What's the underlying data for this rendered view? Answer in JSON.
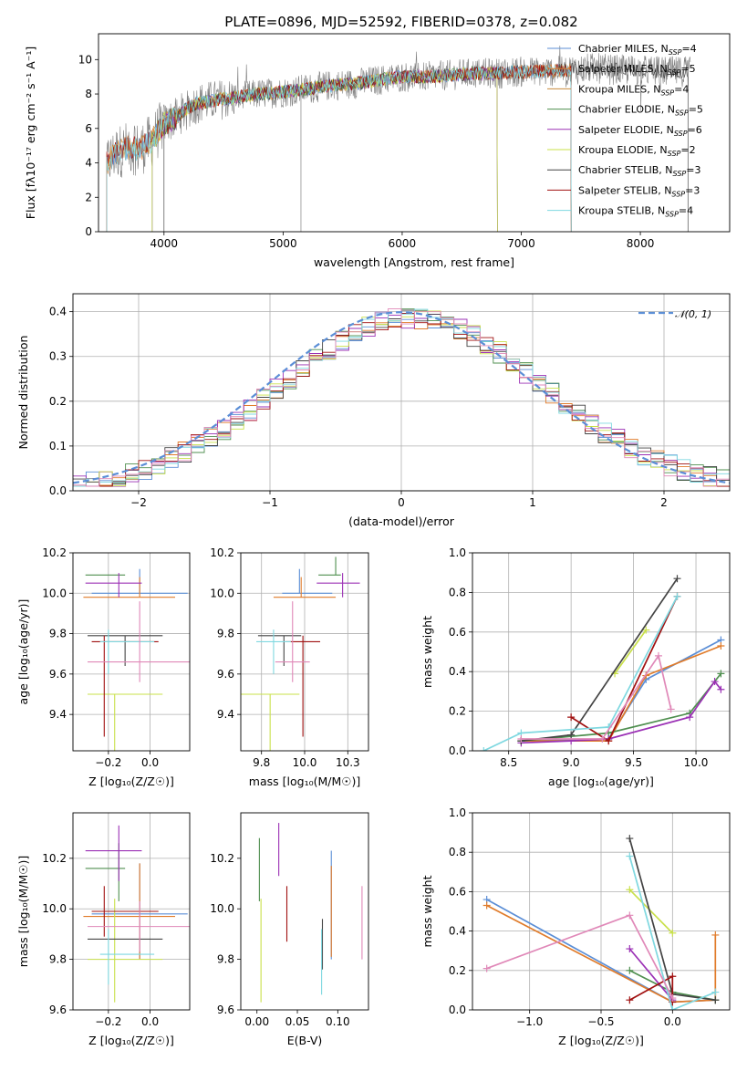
{
  "figure": {
    "title": "PLATE=0896, MJD=52592, FIBERID=0378, z=0.082"
  },
  "chart_data": [
    {
      "id": "spectrum",
      "type": "line",
      "xlabel": "wavelength [Angstrom, rest frame]",
      "ylabel": "Flux [fλ10⁻¹⁷ erg cm⁻² s⁻¹ A⁻¹]",
      "xlim": [
        3450,
        8750
      ],
      "ylim": [
        0,
        11.5
      ],
      "xticks": [
        4000,
        5000,
        6000,
        7000,
        8000
      ],
      "yticks": [
        0,
        2,
        4,
        6,
        8,
        10
      ],
      "grid": false,
      "legend_placement": "top-right",
      "data_curve": {
        "name": "",
        "color": "#808080",
        "x": [
          3520,
          3600,
          3700,
          3800,
          3900,
          4000,
          4100,
          4200,
          4300,
          4400,
          4600,
          4800,
          5000,
          5200,
          5400,
          5600,
          5800,
          6000,
          6200,
          6400,
          6600,
          6800,
          7000,
          7200,
          7400,
          7600,
          7800,
          8000,
          8200,
          8400
        ],
        "y": [
          4.0,
          4.6,
          4.9,
          4.8,
          5.3,
          6.3,
          6.6,
          7.2,
          7.5,
          7.6,
          7.8,
          8.0,
          8.1,
          8.3,
          8.5,
          8.6,
          8.8,
          9.0,
          9.0,
          9.1,
          9.2,
          9.2,
          9.3,
          9.3,
          9.4,
          9.5,
          9.4,
          9.4,
          9.3,
          9.3
        ]
      },
      "series": [
        {
          "name": "Chabrier MILES, N_SSP=4",
          "legend_main": "Chabrier MILES, N",
          "legend_sub": "SSP",
          "legend_tail": "=4",
          "color": "#5b8ed6",
          "x_start": 3520,
          "x_end": 7420
        },
        {
          "name": "Salpeter MILES, N_SSP=5",
          "legend_main": "Salpeter MILES, N",
          "legend_sub": "SSP",
          "legend_tail": "=5",
          "color": "#e07b2a",
          "x_start": 3520,
          "x_end": 7420
        },
        {
          "name": "Kroupa MILES, N_SSP=4",
          "legend_main": "Kroupa MILES, N",
          "legend_sub": "SSP",
          "legend_tail": "=4",
          "color": "#c88a3c",
          "x_start": 3520,
          "x_end": 7420
        },
        {
          "name": "Chabrier ELODIE, N_SSP=5",
          "legend_main": "Chabrier ELODIE, N",
          "legend_sub": "SSP",
          "legend_tail": "=5",
          "color": "#4f8f4f",
          "x_start": 3900,
          "x_end": 6800
        },
        {
          "name": "Salpeter ELODIE, N_SSP=6",
          "legend_main": "Salpeter ELODIE, N",
          "legend_sub": "SSP",
          "legend_tail": "=6",
          "color": "#9b30b5",
          "x_start": 3900,
          "x_end": 6800
        },
        {
          "name": "Kroupa ELODIE, N_SSP=2",
          "legend_main": "Kroupa ELODIE, N",
          "legend_sub": "SSP",
          "legend_tail": "=2",
          "color": "#c9e04a",
          "x_start": 3900,
          "x_end": 6800
        },
        {
          "name": "Chabrier STELIB, N_SSP=3",
          "legend_main": "Chabrier STELIB, N",
          "legend_sub": "SSP",
          "legend_tail": "=3",
          "color": "#444444",
          "x_start": 4000,
          "x_end": 8400
        },
        {
          "name": "Salpeter STELIB, N_SSP=3",
          "legend_main": "Salpeter STELIB, N",
          "legend_sub": "SSP",
          "legend_tail": "=3",
          "color": "#a01010",
          "x_start": 3520,
          "x_end": 7420
        },
        {
          "name": "Kroupa STELIB, N_SSP=4",
          "legend_main": "Kroupa STELIB, N",
          "legend_sub": "SSP",
          "legend_tail": "=4",
          "color": "#7fd8e0",
          "x_start": 3520,
          "x_end": 7420
        }
      ]
    },
    {
      "id": "residuals",
      "type": "histogram",
      "xlabel": "(data-model)/error",
      "ylabel": "Normed distribution",
      "xlim": [
        -2.5,
        2.5
      ],
      "ylim": [
        0,
        0.44
      ],
      "xticks": [
        -2,
        -1,
        0,
        1,
        2
      ],
      "yticks": [
        0.0,
        0.1,
        0.2,
        0.3,
        0.4
      ],
      "grid": true,
      "legend_placement": "top-right",
      "reference_curve": {
        "name": "𝒩(0, 1)",
        "color": "#5b8ed6",
        "style": "dashed"
      },
      "bin_width": 0.1,
      "series_colors": [
        "#5b8ed6",
        "#e07b2a",
        "#4f8f4f",
        "#9b30b5",
        "#c9e04a",
        "#444444",
        "#a01010",
        "#7fd8e0",
        "#e088b8"
      ]
    },
    {
      "id": "age-vs-Z",
      "type": "errorbar",
      "xlabel": "Z [log₁₀(Z/Z☉)]",
      "ylabel": "age  [log₁₀(age/yr)]",
      "xlim": [
        -0.37,
        0.19
      ],
      "ylim": [
        9.22,
        10.2
      ],
      "xticks": [
        -0.2,
        0.0
      ],
      "yticks": [
        9.4,
        9.6,
        9.8,
        10.0,
        10.2
      ],
      "grid": true,
      "points": [
        {
          "color": "#5b8ed6",
          "x": -0.05,
          "xerr": [
            0.23,
            0.23
          ],
          "y": 10.0,
          "yerr": [
            0.0,
            0.12
          ]
        },
        {
          "color": "#e07b2a",
          "x": -0.05,
          "xerr": [
            0.27,
            0.17
          ],
          "y": 9.98,
          "yerr": [
            0.0,
            0.1
          ]
        },
        {
          "color": "#4f8f4f",
          "x": -0.15,
          "xerr": [
            0.16,
            0.03
          ],
          "y": 10.09,
          "yerr": [
            0.0,
            0.0
          ]
        },
        {
          "color": "#9b30b5",
          "x": -0.15,
          "xerr": [
            0.16,
            0.11
          ],
          "y": 10.05,
          "yerr": [
            0.07,
            0.05
          ]
        },
        {
          "color": "#c9e04a",
          "x": -0.17,
          "xerr": [
            0.13,
            0.23
          ],
          "y": 9.5,
          "yerr": [
            0.3,
            0.0
          ]
        },
        {
          "color": "#444444",
          "x": -0.12,
          "xerr": [
            0.18,
            0.18
          ],
          "y": 9.79,
          "yerr": [
            0.15,
            0.0
          ]
        },
        {
          "color": "#a01010",
          "x": -0.22,
          "xerr": [
            0.06,
            0.26
          ],
          "y": 9.76,
          "yerr": [
            0.47,
            0.03
          ]
        },
        {
          "color": "#7fd8e0",
          "x": -0.2,
          "xerr": [
            0.04,
            0.22
          ],
          "y": 9.76,
          "yerr": [
            0.16,
            0.06
          ]
        },
        {
          "color": "#e088b8",
          "x": -0.05,
          "xerr": [
            0.25,
            0.27
          ],
          "y": 9.66,
          "yerr": [
            0.1,
            0.3
          ]
        }
      ]
    },
    {
      "id": "age-vs-mass",
      "type": "errorbar",
      "xlabel": "mass [log₁₀(M/M☉)]",
      "ylabel": "",
      "xlim": [
        9.63,
        10.37
      ],
      "ylim": [
        9.22,
        10.2
      ],
      "xticks": [
        9.75,
        10.0,
        10.25
      ],
      "yticks": [
        9.4,
        9.6,
        9.8,
        10.0,
        10.2
      ],
      "grid": true,
      "points": [
        {
          "color": "#5b8ed6",
          "x": 9.97,
          "xerr": [
            0.1,
            0.19
          ],
          "y": 10.0,
          "yerr": [
            0.0,
            0.12
          ]
        },
        {
          "color": "#e07b2a",
          "x": 9.98,
          "xerr": [
            0.16,
            0.2
          ],
          "y": 9.98,
          "yerr": [
            0.0,
            0.1
          ]
        },
        {
          "color": "#4f8f4f",
          "x": 10.18,
          "xerr": [
            0.1,
            0.03
          ],
          "y": 10.09,
          "yerr": [
            0.0,
            0.09
          ]
        },
        {
          "color": "#9b30b5",
          "x": 10.22,
          "xerr": [
            0.15,
            0.1
          ],
          "y": 10.05,
          "yerr": [
            0.07,
            0.05
          ]
        },
        {
          "color": "#c9e04a",
          "x": 9.8,
          "xerr": [
            0.17,
            0.17
          ],
          "y": 9.5,
          "yerr": [
            0.3,
            0.0
          ]
        },
        {
          "color": "#444444",
          "x": 9.88,
          "xerr": [
            0.15,
            0.1
          ],
          "y": 9.79,
          "yerr": [
            0.15,
            0.0
          ]
        },
        {
          "color": "#a01010",
          "x": 9.99,
          "xerr": [
            0.1,
            0.1
          ],
          "y": 9.76,
          "yerr": [
            0.47,
            0.03
          ]
        },
        {
          "color": "#7fd8e0",
          "x": 9.82,
          "xerr": [
            0.1,
            0.1
          ],
          "y": 9.76,
          "yerr": [
            0.16,
            0.06
          ]
        },
        {
          "color": "#e088b8",
          "x": 9.93,
          "xerr": [
            0.1,
            0.1
          ],
          "y": 9.66,
          "yerr": [
            0.1,
            0.3
          ]
        }
      ]
    },
    {
      "id": "weight-vs-age",
      "type": "line",
      "xlabel": "age  [log₁₀(age/yr)]",
      "ylabel": "mass weight",
      "xlim": [
        8.21,
        10.27
      ],
      "ylim": [
        0,
        1.0
      ],
      "xticks": [
        8.5,
        9.0,
        9.5,
        10.0
      ],
      "yticks": [
        0.0,
        0.2,
        0.4,
        0.6,
        0.8,
        1.0
      ],
      "grid": true,
      "series": [
        {
          "color": "#5b8ed6",
          "x": [
            8.6,
            9.3,
            9.6,
            10.2
          ],
          "y": [
            0.05,
            0.06,
            0.36,
            0.56
          ]
        },
        {
          "color": "#e07b2a",
          "x": [
            8.6,
            9.3,
            9.6,
            10.2
          ],
          "y": [
            0.05,
            0.05,
            0.38,
            0.53
          ]
        },
        {
          "color": "#4f8f4f",
          "x": [
            8.6,
            9.3,
            9.95,
            10.2
          ],
          "y": [
            0.05,
            0.09,
            0.19,
            0.39
          ]
        },
        {
          "color": "#9b30b5",
          "x": [
            8.6,
            9.0,
            9.3,
            9.95,
            10.15,
            10.2
          ],
          "y": [
            0.04,
            0.05,
            0.06,
            0.17,
            0.35,
            0.31
          ]
        },
        {
          "color": "#c9e04a",
          "x": [
            9.35,
            9.6
          ],
          "y": [
            0.39,
            0.61
          ]
        },
        {
          "color": "#444444",
          "x": [
            8.6,
            9.0,
            9.85
          ],
          "y": [
            0.05,
            0.08,
            0.87
          ]
        },
        {
          "color": "#a01010",
          "x": [
            9.0,
            9.3,
            9.85
          ],
          "y": [
            0.17,
            0.05,
            0.78
          ]
        },
        {
          "color": "#7fd8e0",
          "x": [
            8.3,
            8.6,
            9.3,
            9.85
          ],
          "y": [
            0.0,
            0.09,
            0.12,
            0.78
          ]
        },
        {
          "color": "#e088b8",
          "x": [
            8.6,
            9.25,
            9.7,
            9.8
          ],
          "y": [
            0.06,
            0.06,
            0.48,
            0.21
          ]
        }
      ]
    },
    {
      "id": "mass-vs-Z",
      "type": "errorbar",
      "xlabel": "Z [log₁₀(Z/Z☉)]",
      "ylabel": "mass [log₁₀(M/M☉)]",
      "xlim": [
        -0.37,
        0.19
      ],
      "ylim": [
        9.6,
        10.38
      ],
      "xticks": [
        -0.2,
        0.0
      ],
      "yticks": [
        9.6,
        9.8,
        10.0,
        10.2
      ],
      "grid": true,
      "points": [
        {
          "color": "#5b8ed6",
          "x": -0.05,
          "xerr": [
            0.23,
            0.23
          ],
          "y": 9.98,
          "yerr": [
            0.18,
            0.2
          ]
        },
        {
          "color": "#e07b2a",
          "x": -0.05,
          "xerr": [
            0.27,
            0.17
          ],
          "y": 9.97,
          "yerr": [
            0.17,
            0.21
          ]
        },
        {
          "color": "#4f8f4f",
          "x": -0.15,
          "xerr": [
            0.16,
            0.03
          ],
          "y": 10.16,
          "yerr": [
            0.13,
            0.1
          ]
        },
        {
          "color": "#9b30b5",
          "x": -0.15,
          "xerr": [
            0.16,
            0.11
          ],
          "y": 10.23,
          "yerr": [
            0.12,
            0.1
          ]
        },
        {
          "color": "#c9e04a",
          "x": -0.17,
          "xerr": [
            0.13,
            0.23
          ],
          "y": 9.8,
          "yerr": [
            0.17,
            0.24
          ]
        },
        {
          "color": "#444444",
          "x": -0.12,
          "xerr": [
            0.18,
            0.18
          ],
          "y": 9.88,
          "yerr": [
            0.0,
            0.0
          ]
        },
        {
          "color": "#a01010",
          "x": -0.22,
          "xerr": [
            0.06,
            0.26
          ],
          "y": 9.99,
          "yerr": [
            0.1,
            0.1
          ]
        },
        {
          "color": "#7fd8e0",
          "x": -0.2,
          "xerr": [
            0.04,
            0.22
          ],
          "y": 9.82,
          "yerr": [
            0.12,
            0.1
          ]
        },
        {
          "color": "#e088b8",
          "x": -0.05,
          "xerr": [
            0.25,
            0.27
          ],
          "y": 9.93,
          "yerr": [
            0.1,
            0.1
          ]
        }
      ]
    },
    {
      "id": "mass-vs-ebv",
      "type": "errorbar",
      "xlabel": "E(B-V)",
      "ylabel": "",
      "xlim": [
        -0.02,
        0.138
      ],
      "ylim": [
        9.6,
        10.38
      ],
      "xticks": [
        0.0,
        0.05,
        0.1
      ],
      "yticks": [
        9.6,
        9.8,
        10.0,
        10.2
      ],
      "grid": false,
      "points": [
        {
          "color": "#5b8ed6",
          "x": 0.092,
          "y": 9.98,
          "yerr": [
            0.18,
            0.25
          ]
        },
        {
          "color": "#e07b2a",
          "x": 0.092,
          "y": 9.97,
          "yerr": [
            0.16,
            0.2
          ]
        },
        {
          "color": "#4f8f4f",
          "x": 0.003,
          "y": 10.16,
          "yerr": [
            0.13,
            0.12
          ]
        },
        {
          "color": "#9b30b5",
          "x": 0.027,
          "y": 10.23,
          "yerr": [
            0.1,
            0.11
          ]
        },
        {
          "color": "#c9e04a",
          "x": 0.005,
          "y": 9.8,
          "yerr": [
            0.17,
            0.24
          ]
        },
        {
          "color": "#444444",
          "x": 0.081,
          "y": 9.88,
          "yerr": [
            0.12,
            0.08
          ]
        },
        {
          "color": "#a01010",
          "x": 0.037,
          "y": 9.99,
          "yerr": [
            0.12,
            0.1
          ]
        },
        {
          "color": "#7fd8e0",
          "x": 0.08,
          "y": 9.82,
          "yerr": [
            0.16,
            0.1
          ]
        },
        {
          "color": "#e088b8",
          "x": 0.13,
          "y": 9.93,
          "yerr": [
            0.13,
            0.16
          ]
        }
      ]
    },
    {
      "id": "weight-vs-Z",
      "type": "line",
      "xlabel": "Z [log₁₀(Z/Z☉)]",
      "ylabel": "mass weight",
      "xlim": [
        -1.4,
        0.4
      ],
      "ylim": [
        0,
        1.0
      ],
      "xticks": [
        -1.0,
        -0.5,
        0.0
      ],
      "yticks": [
        0.0,
        0.2,
        0.4,
        0.6,
        0.8,
        1.0
      ],
      "grid": true,
      "series": [
        {
          "color": "#5b8ed6",
          "x": [
            -1.3,
            0.0,
            0.3
          ],
          "y": [
            0.56,
            0.04,
            0.05
          ]
        },
        {
          "color": "#e07b2a",
          "x": [
            -1.3,
            0.0,
            0.3,
            0.3
          ],
          "y": [
            0.53,
            0.04,
            0.05,
            0.38
          ]
        },
        {
          "color": "#4f8f4f",
          "x": [
            -0.3,
            0.0,
            0.3
          ],
          "y": [
            0.2,
            0.09,
            0.05
          ]
        },
        {
          "color": "#9b30b5",
          "x": [
            -0.3,
            0.0
          ],
          "y": [
            0.31,
            0.05
          ]
        },
        {
          "color": "#c9e04a",
          "x": [
            -0.3,
            0.0
          ],
          "y": [
            0.61,
            0.39
          ]
        },
        {
          "color": "#444444",
          "x": [
            -0.3,
            0.0,
            0.3
          ],
          "y": [
            0.87,
            0.08,
            0.05
          ]
        },
        {
          "color": "#a01010",
          "x": [
            -0.3,
            0.0,
            0.0
          ],
          "y": [
            0.05,
            0.17,
            0.04
          ]
        },
        {
          "color": "#7fd8e0",
          "x": [
            -0.3,
            0.0,
            0.3
          ],
          "y": [
            0.78,
            0.0,
            0.09
          ]
        },
        {
          "color": "#e088b8",
          "x": [
            -1.3,
            -0.3,
            0.0
          ],
          "y": [
            0.21,
            0.48,
            0.06
          ]
        }
      ]
    }
  ]
}
